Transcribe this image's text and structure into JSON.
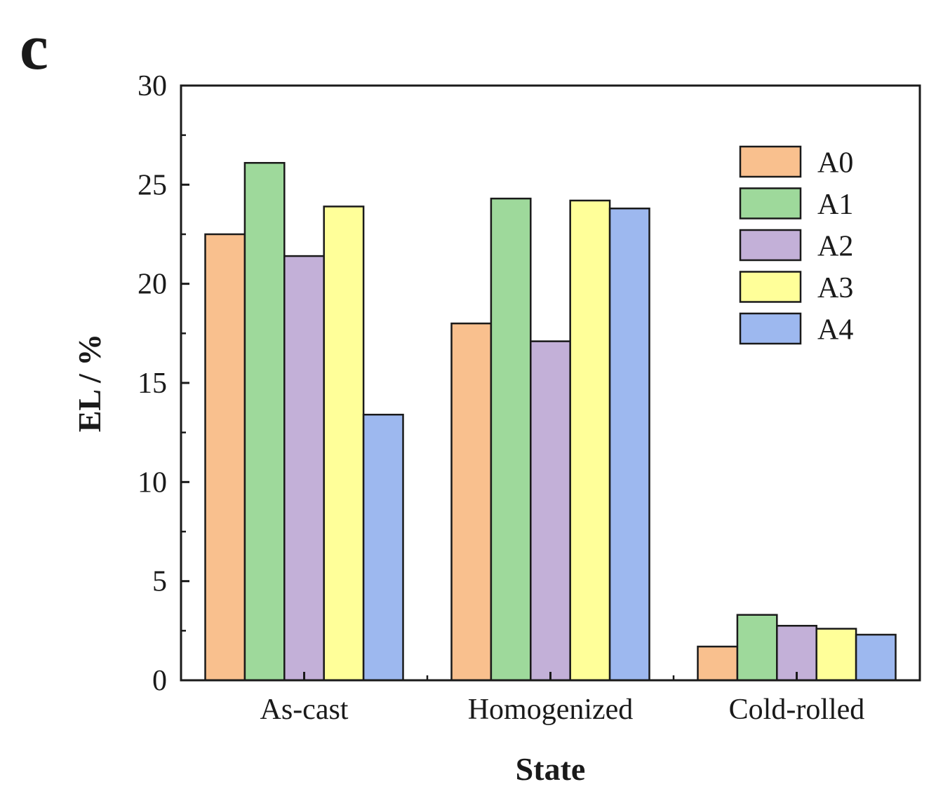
{
  "panel_label": "c",
  "chart_data": {
    "type": "bar",
    "title": "",
    "xlabel": "State",
    "ylabel": "EL / %",
    "ylim": [
      0,
      30
    ],
    "yticks": [
      "0",
      "5",
      "10",
      "15",
      "20",
      "25",
      "30"
    ],
    "categories": [
      "As-cast",
      "Homogenized",
      "Cold-rolled"
    ],
    "series": [
      {
        "name": "A0",
        "color": "#F9C08E",
        "values": [
          22.5,
          18.0,
          1.7
        ]
      },
      {
        "name": "A1",
        "color": "#9ED99B",
        "values": [
          26.1,
          24.3,
          3.3
        ]
      },
      {
        "name": "A2",
        "color": "#C3B0D8",
        "values": [
          21.4,
          17.1,
          2.75
        ]
      },
      {
        "name": "A3",
        "color": "#FFFF99",
        "values": [
          23.9,
          24.2,
          2.6
        ]
      },
      {
        "name": "A4",
        "color": "#9DB8EF",
        "values": [
          13.4,
          23.8,
          2.3
        ]
      }
    ],
    "legend_position": "top-right",
    "grid": false
  }
}
